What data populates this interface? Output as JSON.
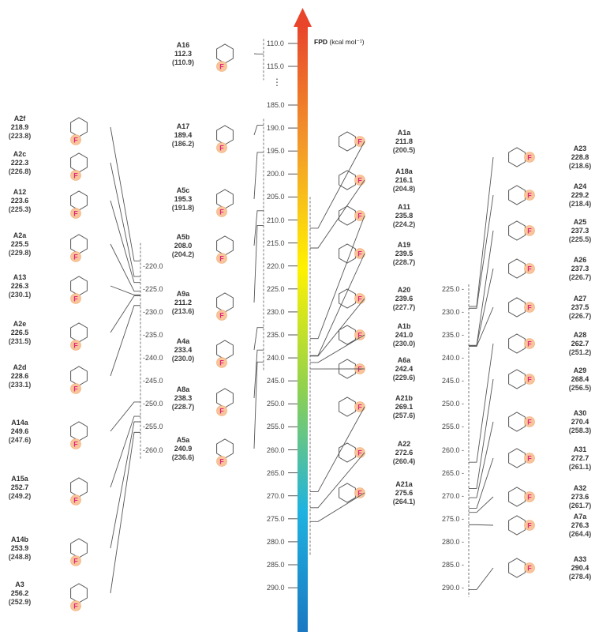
{
  "axis": {
    "title": "FPD",
    "unit": "(kcal mol⁻¹)",
    "ellipsis": "⋮",
    "main_ticks": [
      "110.0",
      "115.0",
      "185.0",
      "190.0",
      "195.0",
      "200.0",
      "205.0",
      "210.0",
      "215.0",
      "220.0",
      "225.0",
      "230.0",
      "235.0",
      "240.0",
      "245.0",
      "250.0",
      "255.0",
      "260.0",
      "265.0",
      "270.0",
      "275.0",
      "280.0",
      "285.0",
      "290.0"
    ],
    "left_ticks": [
      "220.0",
      "225.0",
      "230.0",
      "235.0",
      "240.0",
      "245.0",
      "250.0",
      "255.0",
      "260.0"
    ],
    "right_ticks": [
      "225.0",
      "230.0",
      "235.0",
      "240.0",
      "245.0",
      "250.0",
      "255.0",
      "260.0",
      "265.0",
      "270.0",
      "275.0",
      "280.0",
      "285.0",
      "290.0"
    ],
    "arrow_gradient": [
      "#e8452b",
      "#f39a2a",
      "#fff200",
      "#8fd14f",
      "#1fb3e0",
      "#1a78c2"
    ]
  },
  "colors": {
    "fluorine_badge": "#f8c59a",
    "fluorine_text": "#e0247a",
    "line": "#555555"
  },
  "compounds": {
    "left": [
      {
        "id": "A2f",
        "fpd": "218.9",
        "paren": "(223.8)"
      },
      {
        "id": "A2c",
        "fpd": "222.3",
        "paren": "(226.8)"
      },
      {
        "id": "A12",
        "fpd": "223.6",
        "paren": "(225.3)"
      },
      {
        "id": "A2a",
        "fpd": "225.5",
        "paren": "(229.8)"
      },
      {
        "id": "A13",
        "fpd": "226.3",
        "paren": "(230.1)"
      },
      {
        "id": "A2e",
        "fpd": "226.5",
        "paren": "(231.5)"
      },
      {
        "id": "A2d",
        "fpd": "228.6",
        "paren": "(233.1)"
      },
      {
        "id": "A14a",
        "fpd": "249.6",
        "paren": "(247.6)"
      },
      {
        "id": "A15a",
        "fpd": "252.7",
        "paren": "(249.2)"
      },
      {
        "id": "A14b",
        "fpd": "253.9",
        "paren": "(248.8)"
      },
      {
        "id": "A3",
        "fpd": "256.2",
        "paren": "(252.9)"
      }
    ],
    "middle": [
      {
        "id": "A16",
        "fpd": "112.3",
        "paren": "(110.9)"
      },
      {
        "id": "A17",
        "fpd": "189.4",
        "paren": "(186.2)"
      },
      {
        "id": "A5c",
        "fpd": "195.3",
        "paren": "(191.8)"
      },
      {
        "id": "A5b",
        "fpd": "208.0",
        "paren": "(204.2)"
      },
      {
        "id": "A9a",
        "fpd": "211.2",
        "paren": "(213.6)"
      },
      {
        "id": "A4a",
        "fpd": "233.4",
        "paren": "(230.0)"
      },
      {
        "id": "A8a",
        "fpd": "238.3",
        "paren": "(228.7)"
      },
      {
        "id": "A5a",
        "fpd": "240.9",
        "paren": "(236.6)"
      }
    ],
    "right_mid": [
      {
        "id": "A1a",
        "fpd": "211.8",
        "paren": "(200.5)"
      },
      {
        "id": "A18a",
        "fpd": "216.1",
        "paren": "(204.8)"
      },
      {
        "id": "A11",
        "fpd": "235.8",
        "paren": "(224.2)"
      },
      {
        "id": "A19",
        "fpd": "239.5",
        "paren": "(228.7)"
      },
      {
        "id": "A20",
        "fpd": "239.6",
        "paren": "(227.7)"
      },
      {
        "id": "A1b",
        "fpd": "241.0",
        "paren": "(230.0)"
      },
      {
        "id": "A6a",
        "fpd": "242.4",
        "paren": "(229.6)"
      },
      {
        "id": "A21b",
        "fpd": "269.1",
        "paren": "(257.6)"
      },
      {
        "id": "A22",
        "fpd": "272.6",
        "paren": "(260.4)"
      },
      {
        "id": "A21a",
        "fpd": "275.6",
        "paren": "(264.1)"
      }
    ],
    "right": [
      {
        "id": "A23",
        "fpd": "228.8",
        "paren": "(218.6)"
      },
      {
        "id": "A24",
        "fpd": "229.2",
        "paren": "(218.4)"
      },
      {
        "id": "A25",
        "fpd": "237.3",
        "paren": "(225.5)"
      },
      {
        "id": "A26",
        "fpd": "237.3",
        "paren": "(226.7)"
      },
      {
        "id": "A27",
        "fpd": "237.5",
        "paren": "(226.7)"
      },
      {
        "id": "A28",
        "fpd": "262.7",
        "paren": "(251.2)"
      },
      {
        "id": "A29",
        "fpd": "268.4",
        "paren": "(256.5)"
      },
      {
        "id": "A30",
        "fpd": "270.4",
        "paren": "(258.3)"
      },
      {
        "id": "A31",
        "fpd": "272.7",
        "paren": "(261.1)"
      },
      {
        "id": "A32",
        "fpd": "273.6",
        "paren": "(261.7)"
      },
      {
        "id": "A7a",
        "fpd": "276.3",
        "paren": "(264.4)"
      },
      {
        "id": "A33",
        "fpd": "290.4",
        "paren": "(278.4)"
      }
    ]
  },
  "badge_label": "F"
}
